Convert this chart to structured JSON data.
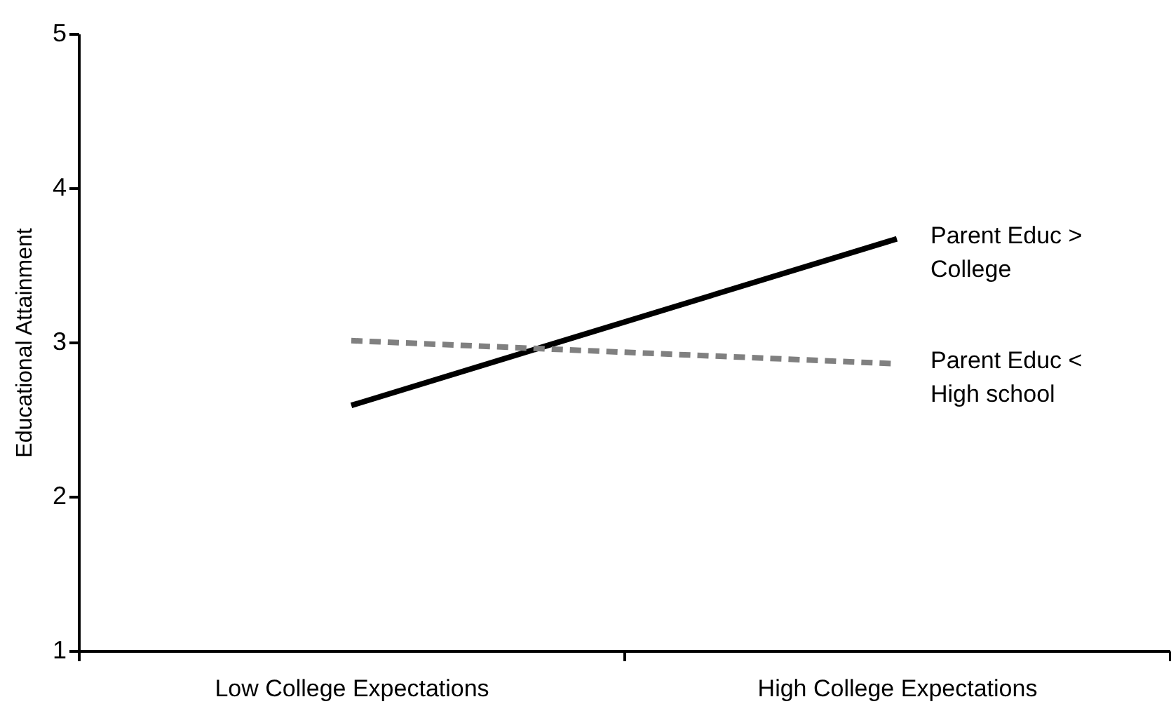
{
  "chart_data": {
    "type": "line",
    "ylabel": "Educational Attainment",
    "categories": [
      "Low College Expectations",
      "High College Expectations"
    ],
    "series": [
      {
        "name": "Parent Educ > College",
        "color": "#000000",
        "line_style": "solid",
        "values": [
          2.59,
          3.67
        ]
      },
      {
        "name": "Parent Educ < High school",
        "color": "#808080",
        "line_style": "dashed",
        "values": [
          3.01,
          2.86
        ]
      }
    ],
    "ylim": [
      1,
      5
    ],
    "yticks": [
      1,
      2,
      3,
      4,
      5
    ],
    "grid": false,
    "legend": false,
    "marker": "none"
  }
}
